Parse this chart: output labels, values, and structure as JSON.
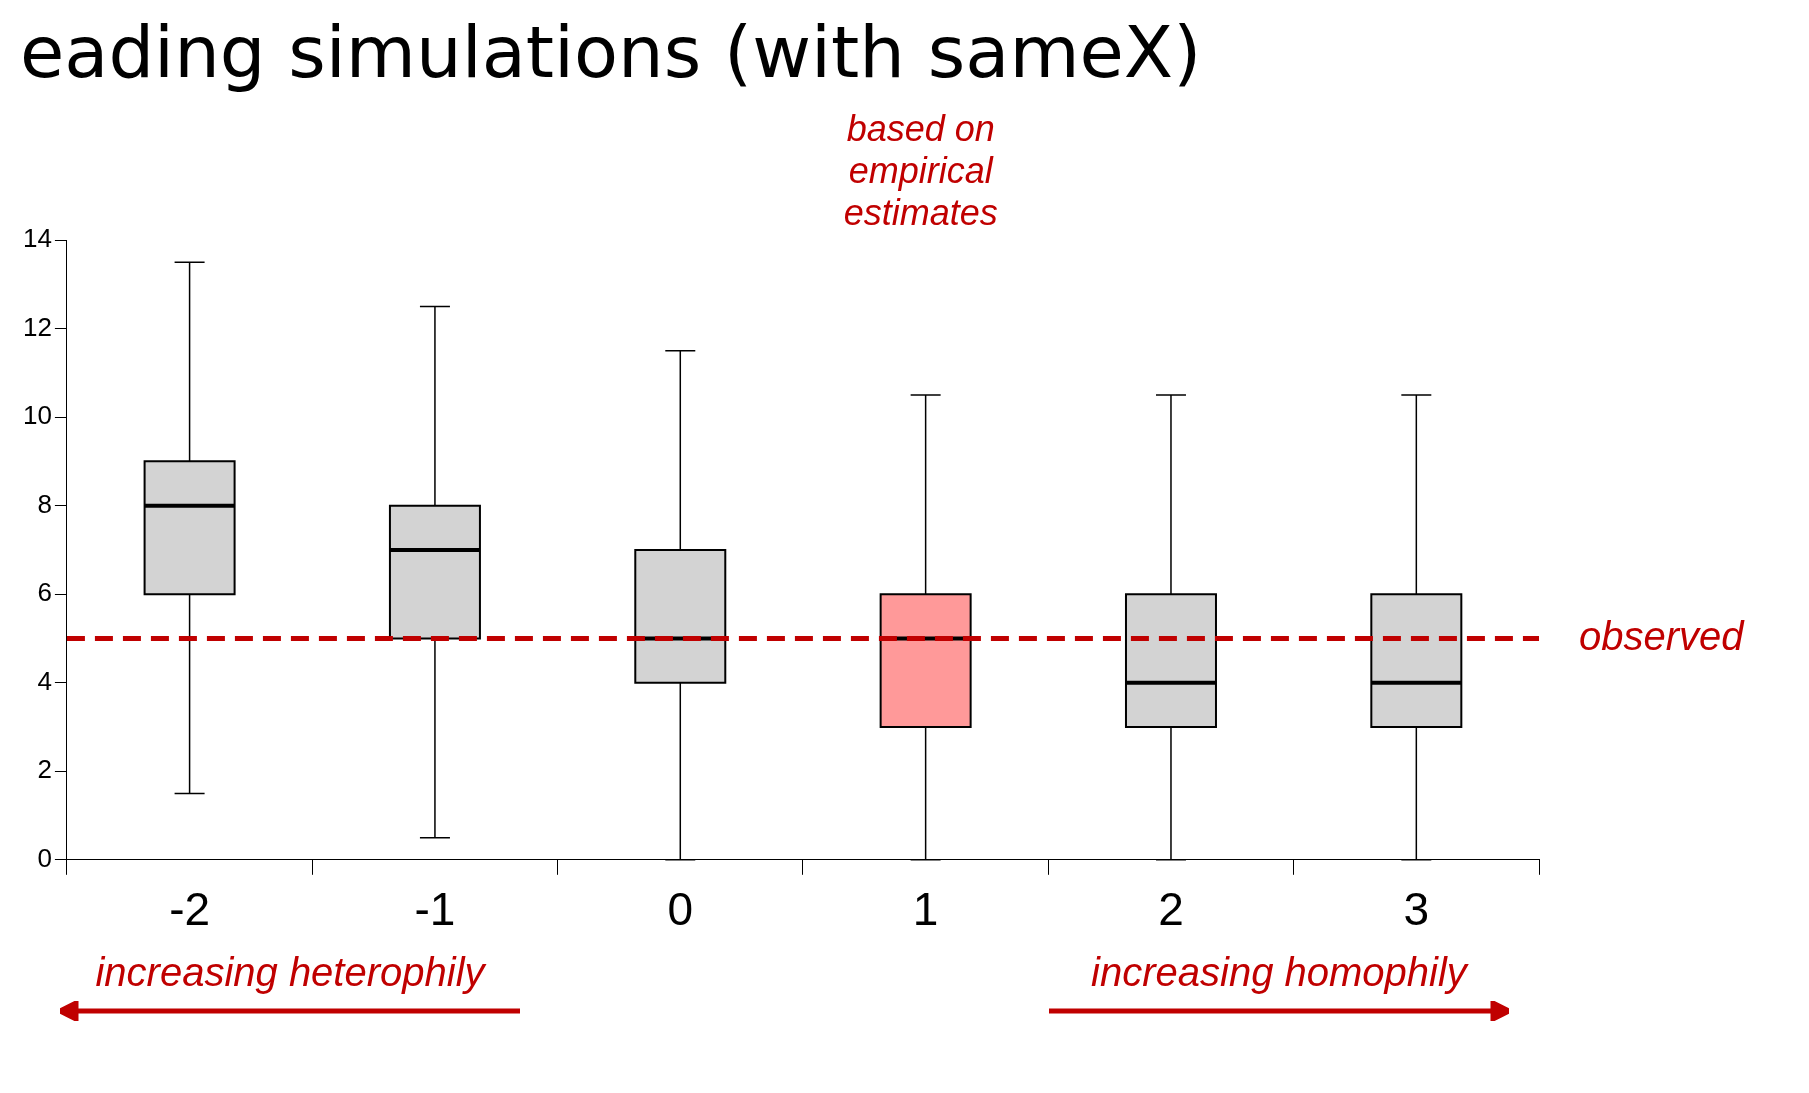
{
  "chart_data": {
    "type": "box",
    "title": "eading simulations (with sameX)",
    "categories": [
      "-2",
      "-1",
      "0",
      "1",
      "2",
      "3"
    ],
    "boxes": [
      {
        "low": 1.5,
        "q1": 6,
        "median": 8,
        "q3": 9,
        "high": 13.5
      },
      {
        "low": 0.5,
        "q1": 5,
        "median": 7,
        "q3": 8,
        "high": 12.5
      },
      {
        "low": 0,
        "q1": 4,
        "median": 5,
        "q3": 7,
        "high": 11.5
      },
      {
        "low": 0,
        "q1": 3,
        "median": 5,
        "q3": 6,
        "high": 10.5
      },
      {
        "low": 0,
        "q1": 3,
        "median": 4,
        "q3": 6,
        "high": 10.5
      },
      {
        "low": 0,
        "q1": 3,
        "median": 4,
        "q3": 6,
        "high": 10.5
      }
    ],
    "colors": [
      "#d3d3d3",
      "#d3d3d3",
      "#d3d3d3",
      "#ff9999",
      "#d3d3d3",
      "#d3d3d3"
    ],
    "ylim": [
      0,
      14
    ],
    "yticks": [
      0,
      2,
      4,
      6,
      8,
      10,
      12,
      14
    ],
    "grid": false,
    "ref_lines": [
      {
        "axis": "y",
        "value": 5,
        "label": "observed",
        "color": "#c00000",
        "line_style": "dashed"
      }
    ],
    "annotations": [
      "based on empirical estimates",
      "increasing heterophily",
      "increasing homophily"
    ]
  }
}
